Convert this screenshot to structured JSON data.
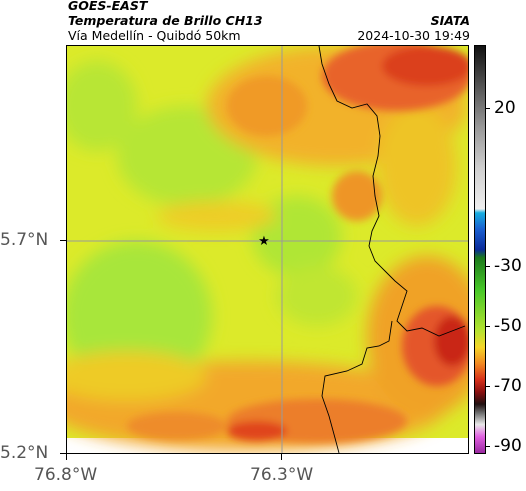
{
  "header": {
    "satellite": "GOES-EAST",
    "product": "Temperatura de Brillo CH13",
    "region": "Vía Medellín - Quibdó 50km",
    "agency": "SIATA",
    "datetime": "2024-10-30 19:49"
  },
  "axes": {
    "y_ticks": [
      "5.7°N",
      "5.2°N"
    ],
    "x_ticks": [
      "76.8°W",
      "76.3°W"
    ]
  },
  "colorbar": {
    "ticks": [
      "20",
      "-30",
      "-50",
      "-70",
      "-90"
    ]
  },
  "colors": {
    "cold_cloud": "#d8301a",
    "mid_cloud": "#f5a020",
    "warm": "#e6e31e",
    "clear": "#9be43c",
    "gridline": "#9a9a9a"
  },
  "map": {
    "marker_icon": "star-icon"
  }
}
